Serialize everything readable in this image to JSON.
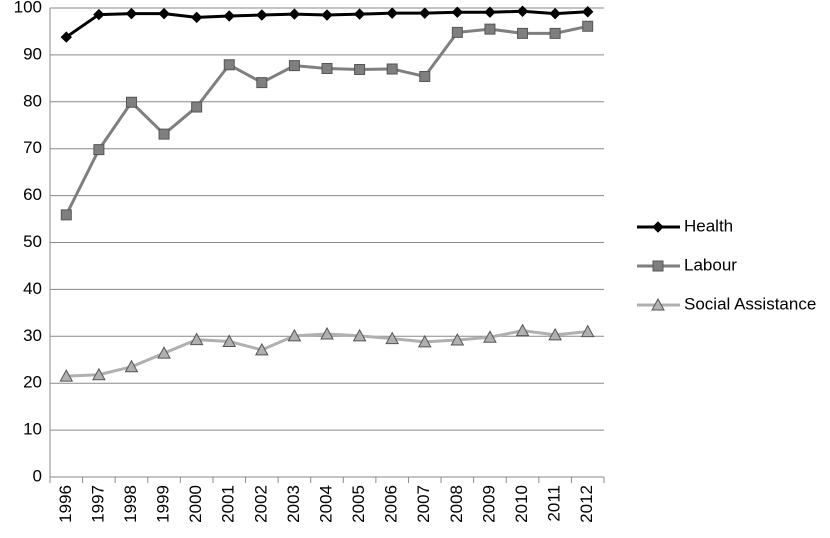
{
  "chart_data": {
    "type": "line",
    "categories": [
      "1996",
      "1997",
      "1998",
      "1999",
      "2000",
      "2001",
      "2002",
      "2003",
      "2004",
      "2005",
      "2006",
      "2007",
      "2008",
      "2009",
      "2010",
      "2011",
      "2012"
    ],
    "series": [
      {
        "name": "Health",
        "color": "#000000",
        "marker": "diamond",
        "values": [
          93.8,
          98.6,
          98.8,
          98.8,
          98.0,
          98.3,
          98.5,
          98.7,
          98.5,
          98.7,
          98.9,
          98.9,
          99.1,
          99.1,
          99.3,
          98.8,
          99.2
        ]
      },
      {
        "name": "Labour",
        "color": "#7f7f7f",
        "marker": "square",
        "values": [
          55.9,
          69.8,
          79.9,
          73.1,
          78.9,
          87.9,
          84.1,
          87.7,
          87.1,
          86.9,
          87.0,
          85.4,
          94.8,
          95.5,
          94.6,
          94.6,
          96.1
        ]
      },
      {
        "name": "Social Assistance",
        "color": "#b0b0b0",
        "marker": "triangle",
        "values": [
          21.5,
          21.8,
          23.5,
          26.4,
          29.3,
          28.9,
          27.1,
          30.1,
          30.5,
          30.1,
          29.5,
          28.8,
          29.2,
          29.8,
          31.2,
          30.3,
          31.0
        ]
      }
    ],
    "ylim": [
      0,
      100
    ],
    "yticks": [
      0,
      10,
      20,
      30,
      40,
      50,
      60,
      70,
      80,
      90,
      100
    ],
    "grid": true,
    "legend": "right"
  }
}
